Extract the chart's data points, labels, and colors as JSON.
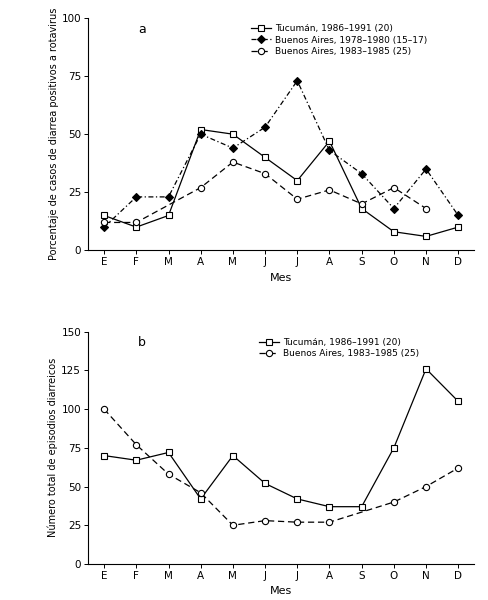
{
  "months": [
    "E",
    "F",
    "M",
    "A",
    "M",
    "J",
    "J",
    "A",
    "S",
    "O",
    "N",
    "D"
  ],
  "panel_a": {
    "tucuman": [
      15,
      10,
      15,
      52,
      50,
      40,
      30,
      47,
      18,
      8,
      6,
      10
    ],
    "buenos_aires_78": [
      10,
      23,
      23,
      50,
      44,
      53,
      73,
      43,
      33,
      18,
      35,
      15
    ],
    "buenos_aires_83": [
      12,
      12,
      null,
      27,
      38,
      33,
      22,
      26,
      20,
      27,
      18,
      null
    ]
  },
  "panel_b": {
    "tucuman": [
      70,
      67,
      72,
      42,
      70,
      52,
      42,
      37,
      37,
      75,
      126,
      105
    ],
    "buenos_aires_83": [
      100,
      77,
      58,
      46,
      25,
      28,
      27,
      27,
      null,
      40,
      50,
      62
    ]
  },
  "legend_a": [
    "Tucumán, 1986–1991 (20)",
    "Buenos Aires, 1978–1980 (15–17)",
    "Buenos Aires, 1983–1985 (25)"
  ],
  "legend_b": [
    "Tucumán, 1986–1991 (20)",
    "Buenos Aires, 1983–1985 (25)"
  ],
  "ylabel_a": "Porcentaje de casos de diarrea positivos a rotavirus",
  "ylabel_b": "Número total de episodios diarreicos",
  "xlabel": "Mes",
  "ylim_a": [
    0,
    100
  ],
  "ylim_b": [
    0,
    150
  ],
  "yticks_a": [
    0,
    25,
    50,
    75,
    100
  ],
  "yticks_b": [
    0,
    25,
    50,
    75,
    100,
    125,
    150
  ],
  "panel_labels": [
    "a",
    "b"
  ],
  "bg_color": "#ffffff"
}
